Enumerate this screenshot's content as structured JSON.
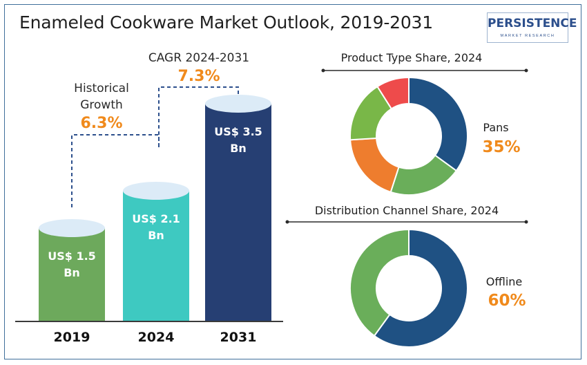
{
  "header": {
    "title": "Enameled Cookware Market Outlook, 2019-2031"
  },
  "logo": {
    "name": "PERSISTENCE",
    "tagline": "MARKET RESEARCH"
  },
  "annotations": {
    "historical_label_line1": "Historical",
    "historical_label_line2": "Growth",
    "historical_value": "6.3%",
    "cagr_label": "CAGR 2024-2031",
    "cagr_value": "7.3%"
  },
  "colors": {
    "bar_2019": "#6da95c",
    "bar_2024": "#3ec9c1",
    "bar_2031": "#263f73",
    "accent": "#f08a1c",
    "donut_blue": "#1f5183",
    "donut_green": "#6aae5a",
    "donut_orange": "#ee7d2e",
    "donut_lime": "#79b748",
    "donut_red": "#ee4b4b"
  },
  "chart_data": [
    {
      "type": "bar",
      "title": "",
      "categories": [
        "2019",
        "2024",
        "2031"
      ],
      "values": [
        1.5,
        2.1,
        3.5
      ],
      "labels_line1": [
        "US$ 1.5",
        "US$ 2.1",
        "US$ 3.5"
      ],
      "labels_line2": [
        "Bn",
        "Bn",
        "Bn"
      ],
      "unit": "US$ Bn",
      "ylim": [
        0,
        3.5
      ],
      "grid": false
    },
    {
      "type": "pie",
      "title": "Product Type Share, 2024",
      "highlight": {
        "label": "Pans",
        "value": "35%"
      },
      "slices": [
        {
          "value": 35,
          "color": "#1f5183"
        },
        {
          "value": 20,
          "color": "#6aae5a"
        },
        {
          "value": 19,
          "color": "#ee7d2e"
        },
        {
          "value": 17,
          "color": "#79b748"
        },
        {
          "value": 9,
          "color": "#ee4b4b"
        }
      ]
    },
    {
      "type": "pie",
      "title": "Distribution Channel Share, 2024",
      "highlight": {
        "label": "Offline",
        "value": "60%"
      },
      "slices": [
        {
          "value": 60,
          "color": "#1f5183"
        },
        {
          "value": 40,
          "color": "#6aae5a"
        }
      ]
    }
  ]
}
